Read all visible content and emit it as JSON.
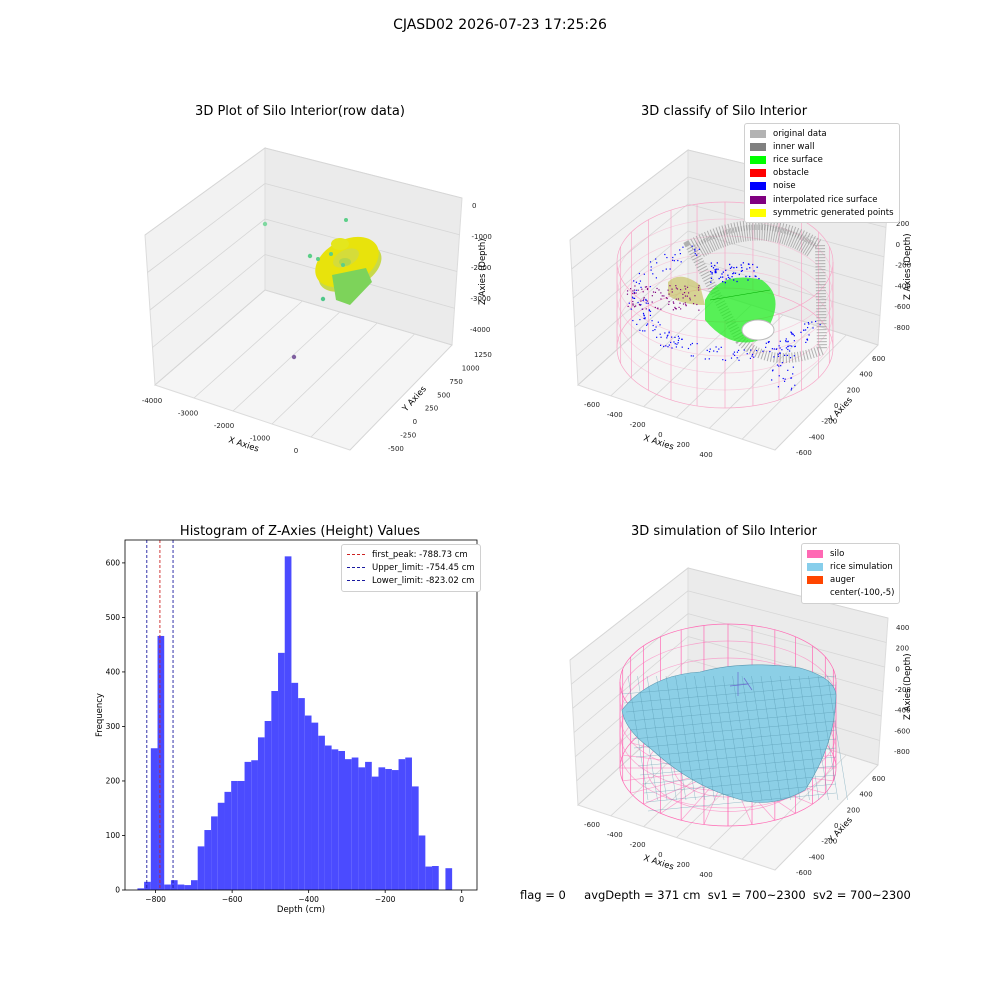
{
  "figure_title": "CJASD02 2026-07-23 17:25:26",
  "footer": {
    "flag": "flag = 0",
    "avg": "avgDepth = 371 cm",
    "sv1": "sv1 = 700~2300",
    "sv2": "sv2 = 700~2300"
  },
  "chart_data": [
    {
      "type": "scatter3d",
      "title": "3D Plot of Silo Interior(row data)",
      "xlabel": "X Axies",
      "ylabel": "Y Axies",
      "zlabel": "Z Axies (Depth)",
      "x_ticks": [
        "-4000",
        "-3000",
        "-2000",
        "-1000",
        "0"
      ],
      "y_ticks": [
        "-500",
        "-250",
        "0",
        "250",
        "500",
        "750",
        "1000",
        "1250"
      ],
      "z_ticks": [
        "0",
        "-1000",
        "-2000",
        "-3000",
        "-4000"
      ],
      "points": [
        {
          "x": -150,
          "y": 150,
          "z": -600,
          "color": "#7fd8a0"
        },
        {
          "x": -700,
          "y": -300,
          "z": -1200,
          "color": "#5ccf88"
        },
        {
          "x": 0,
          "y": 100,
          "z": -1500,
          "color": "#4fc78a"
        },
        {
          "x": -3600,
          "y": -300,
          "z": -3900,
          "color": "#7f5fa0"
        }
      ]
    },
    {
      "type": "scatter3d",
      "title": "3D classify of Silo Interior",
      "xlabel": "X Axies",
      "ylabel": "Y Axies",
      "zlabel": "Z Axies (Depth)",
      "x_ticks": [
        "-600",
        "-400",
        "-200",
        "0",
        "200",
        "400"
      ],
      "y_ticks": [
        "-600",
        "-400",
        "-200",
        "0",
        "200",
        "400",
        "600"
      ],
      "z_ticks": [
        "200",
        "0",
        "-200",
        "-400",
        "-600",
        "-800"
      ],
      "legend": [
        {
          "label": "original data",
          "color": "#b3b3b3"
        },
        {
          "label": "inner wall",
          "color": "#808080"
        },
        {
          "label": "rice surface",
          "color": "#00ff00"
        },
        {
          "label": "obstacle",
          "color": "#ff0000"
        },
        {
          "label": "noise",
          "color": "#0000ff"
        },
        {
          "label": "interpolated rice surface",
          "color": "#800080"
        },
        {
          "label": "symmetric generated points",
          "color": "#ffff00"
        }
      ]
    },
    {
      "type": "bar",
      "title": "Histogram of Z-Axies (Height) Values",
      "xlabel": "Depth (cm)",
      "ylabel": "Frequency",
      "xlim": [
        -880,
        40
      ],
      "ylim": [
        0,
        642
      ],
      "x_ticks": [
        -800,
        -600,
        -400,
        -200,
        0
      ],
      "y_ticks": [
        0,
        100,
        200,
        300,
        400,
        500,
        600
      ],
      "bin_width": 17.5,
      "x_start": -865,
      "values": [
        0,
        3,
        15,
        260,
        466,
        10,
        18,
        10,
        9,
        18,
        80,
        110,
        135,
        160,
        180,
        200,
        200,
        235,
        238,
        280,
        310,
        365,
        435,
        612,
        380,
        352,
        320,
        307,
        283,
        265,
        258,
        255,
        240,
        243,
        225,
        235,
        208,
        225,
        222,
        220,
        240,
        243,
        190,
        100,
        43,
        44,
        0,
        40
      ],
      "bar_color": "#4b4bff",
      "vlines": [
        {
          "label": "first_peak: -788.73 cm",
          "x": -788.73,
          "color": "#cc2222"
        },
        {
          "label": "Upper_limit: -754.45 cm",
          "x": -754.45,
          "color": "#1a1aa0"
        },
        {
          "label": "Lower_limit: -823.02 cm",
          "x": -823.02,
          "color": "#1a1aa0"
        }
      ]
    },
    {
      "type": "surface3d",
      "title": "3D simulation of Silo Interior",
      "xlabel": "X Axies",
      "ylabel": "Y Axies",
      "zlabel": "Z Axies (Depth)",
      "x_ticks": [
        "-600",
        "-400",
        "-200",
        "0",
        "200",
        "400"
      ],
      "y_ticks": [
        "-600",
        "-400",
        "-200",
        "0",
        "200",
        "400",
        "600"
      ],
      "z_ticks": [
        "400",
        "200",
        "0",
        "-200",
        "-400",
        "-600",
        "-800"
      ],
      "legend": [
        {
          "label": "silo",
          "color": "#ff69b4"
        },
        {
          "label": "rice simulation",
          "color": "#87ceeb"
        },
        {
          "label": "auger",
          "color": "#ff4500"
        },
        {
          "label": "center(-100,-5)",
          "color": "none"
        }
      ]
    }
  ]
}
